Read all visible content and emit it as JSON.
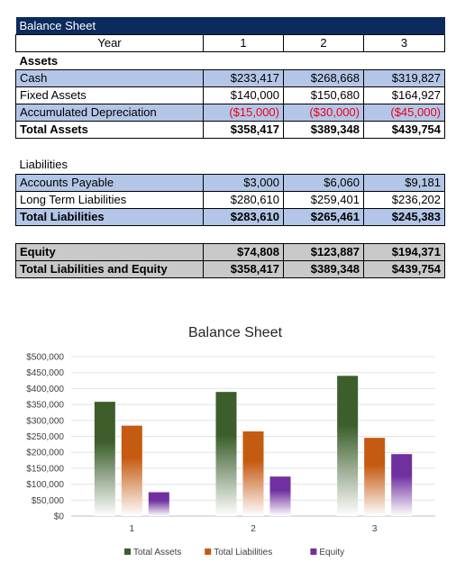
{
  "sheet": {
    "title": "Balance Sheet",
    "year_label": "Year",
    "years": [
      "1",
      "2",
      "3"
    ],
    "assets_heading": "Assets",
    "liabilities_heading": "Liabilities",
    "rows": {
      "cash": {
        "label": "Cash",
        "values": [
          "$233,417",
          "$268,668",
          "$319,827"
        ]
      },
      "fixed_assets": {
        "label": "Fixed Assets",
        "values": [
          "$140,000",
          "$150,680",
          "$164,927"
        ]
      },
      "accum_dep": {
        "label": "Accumulated Depreciation",
        "values": [
          "($15,000)",
          "($30,000)",
          "($45,000)"
        ]
      },
      "total_assets": {
        "label": "Total Assets",
        "values": [
          "$358,417",
          "$389,348",
          "$439,754"
        ]
      },
      "accounts_payable": {
        "label": "Accounts Payable",
        "values": [
          "$3,000",
          "$6,060",
          "$9,181"
        ]
      },
      "long_term": {
        "label": "Long Term Liabilities",
        "values": [
          "$280,610",
          "$259,401",
          "$236,202"
        ]
      },
      "total_liabilities": {
        "label": "Total Liabilities",
        "values": [
          "$283,610",
          "$265,461",
          "$245,383"
        ]
      },
      "equity": {
        "label": "Equity",
        "values": [
          "$74,808",
          "$123,887",
          "$194,371"
        ]
      },
      "total_le": {
        "label": "Total Liabilities and Equity",
        "values": [
          "$358,417",
          "$389,348",
          "$439,754"
        ]
      }
    },
    "negative_color": "#e8001a",
    "title_bg": "#0b2a5e",
    "band_blue": "#b4c6e7",
    "band_gray": "#c9c9c9"
  },
  "chart_data": {
    "type": "bar",
    "title": "Balance Sheet",
    "categories": [
      "1",
      "2",
      "3"
    ],
    "series": [
      {
        "name": "Total Assets",
        "values": [
          358417,
          389348,
          439754
        ],
        "color": "#3b5e2b"
      },
      {
        "name": "Total Liabilities",
        "values": [
          283610,
          265461,
          245383
        ],
        "color": "#c55a11"
      },
      {
        "name": "Equity",
        "values": [
          74808,
          123887,
          194371
        ],
        "color": "#7030a0"
      }
    ],
    "ylim": [
      0,
      500000
    ],
    "yticks": [
      0,
      50000,
      100000,
      150000,
      200000,
      250000,
      300000,
      350000,
      400000,
      450000,
      500000
    ],
    "ytick_labels": [
      "$0",
      "$50,000",
      "$100,000",
      "$150,000",
      "$200,000",
      "$250,000",
      "$300,000",
      "$350,000",
      "$400,000",
      "$450,000",
      "$500,000"
    ],
    "grid": true,
    "legend_position": "bottom",
    "xlabel": "",
    "ylabel": ""
  }
}
